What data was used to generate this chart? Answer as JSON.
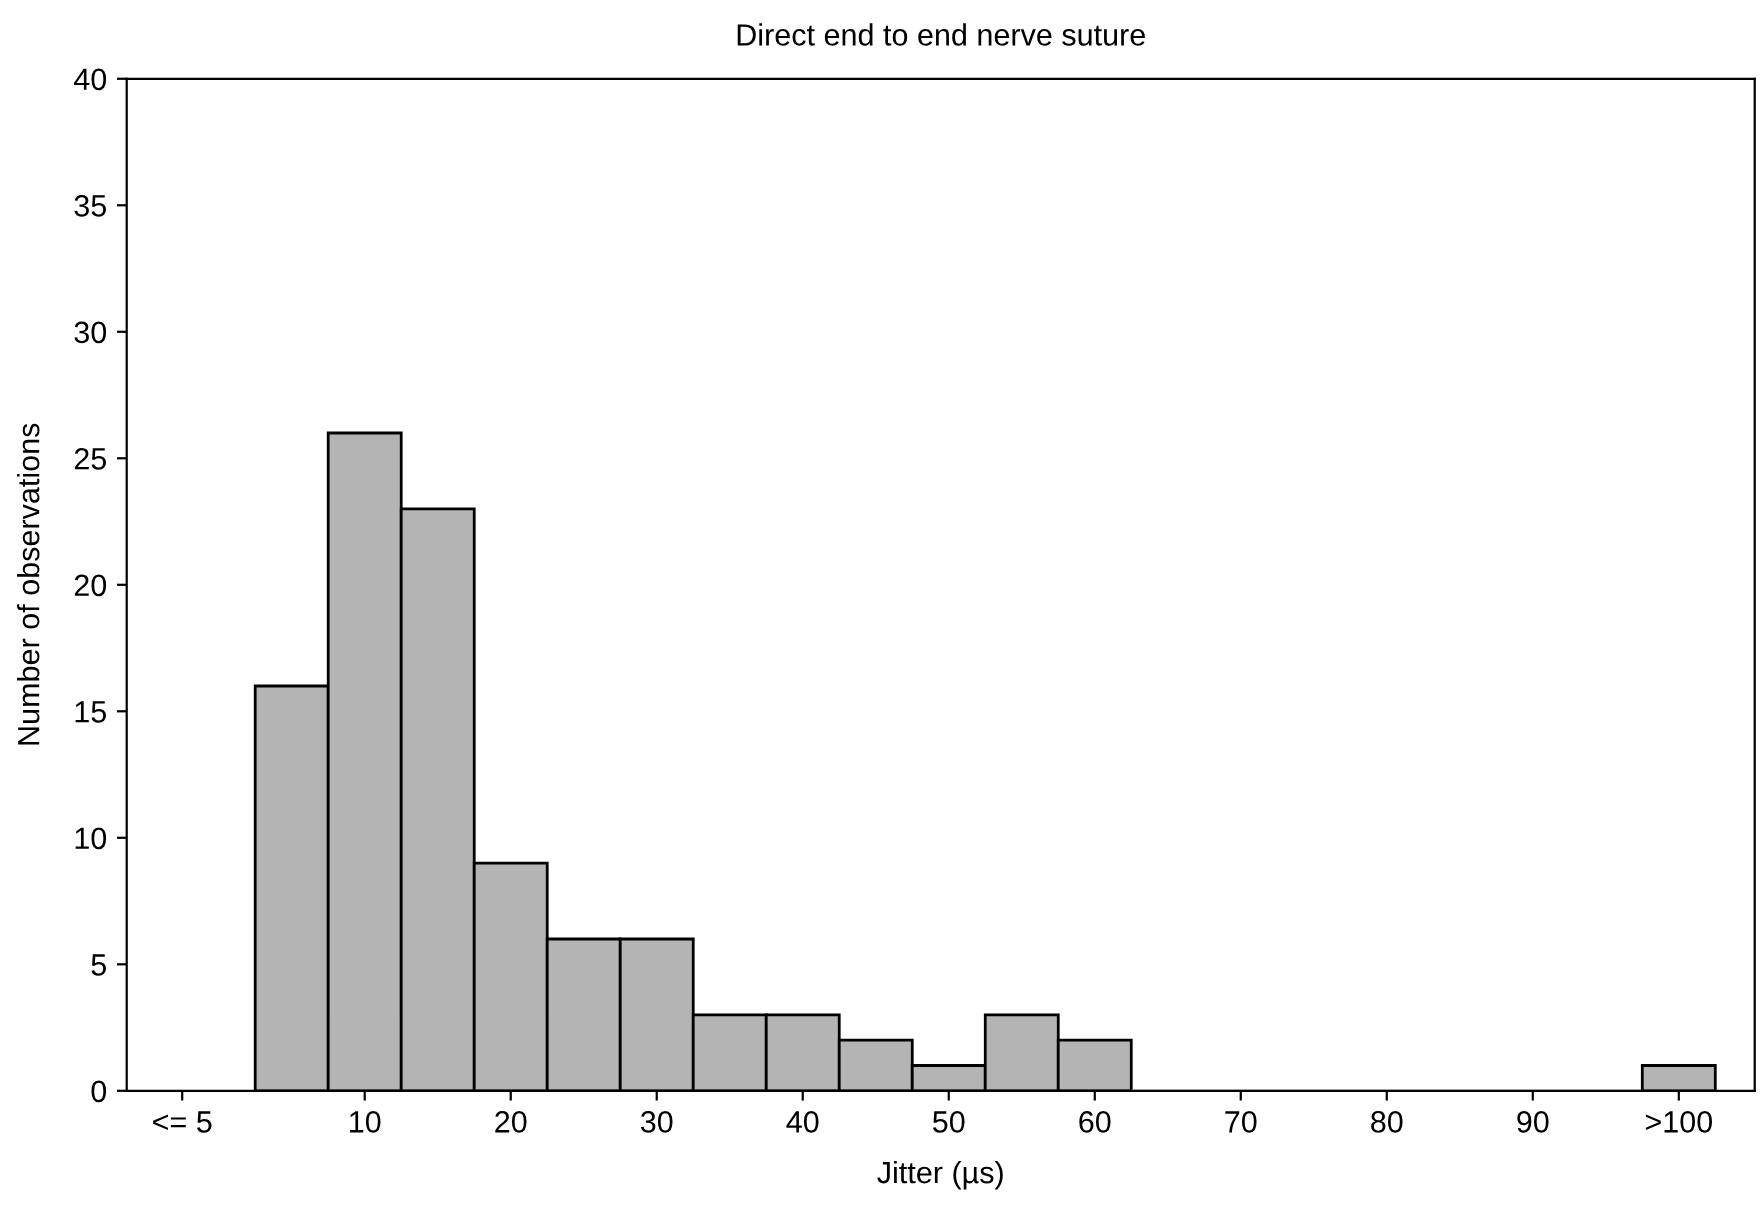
{
  "chart_data": {
    "type": "histogram",
    "title": "Direct end to end nerve suture",
    "xlabel": "Jitter (µs)",
    "ylabel": "Number of observations",
    "bins": [
      2.5,
      7.5,
      12.5,
      17.5,
      22.5,
      27.5,
      32.5,
      37.5,
      42.5,
      47.5,
      52.5,
      57.5,
      62.5,
      67.5,
      72.5,
      77.5,
      82.5,
      87.5,
      92.5,
      97.5,
      102.5
    ],
    "values": [
      16,
      26,
      23,
      9,
      6,
      6,
      3,
      3,
      2,
      1,
      3,
      2,
      0,
      0,
      0,
      0,
      0,
      0,
      0,
      1
    ],
    "color": "#b4b4b4",
    "xlim": [
      -6.3,
      105.2
    ],
    "xticks": [
      {
        "value": -2.5,
        "label": "<= 5"
      },
      10,
      20,
      30,
      40,
      50,
      60,
      70,
      80,
      90,
      {
        "value": 100,
        "label": ">100"
      }
    ],
    "ylim": [
      0,
      40
    ],
    "yticks": [
      0,
      5,
      10,
      15,
      20,
      25,
      30,
      35,
      40
    ],
    "grid": false,
    "legend": false
  }
}
